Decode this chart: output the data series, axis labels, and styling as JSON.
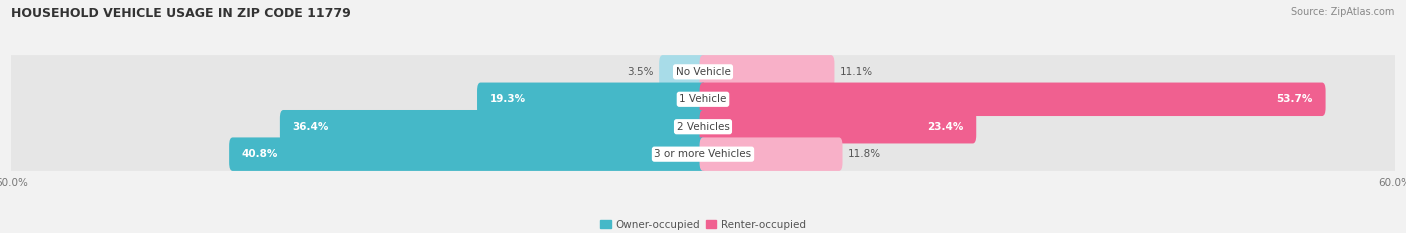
{
  "title": "HOUSEHOLD VEHICLE USAGE IN ZIP CODE 11779",
  "source": "Source: ZipAtlas.com",
  "categories": [
    "No Vehicle",
    "1 Vehicle",
    "2 Vehicles",
    "3 or more Vehicles"
  ],
  "owner_values": [
    3.5,
    19.3,
    36.4,
    40.8
  ],
  "renter_values": [
    11.1,
    53.7,
    23.4,
    11.8
  ],
  "owner_color": "#45b8c8",
  "renter_color": "#f06090",
  "owner_light_color": "#a8dce8",
  "renter_light_color": "#f8b0c8",
  "owner_label": "Owner-occupied",
  "renter_label": "Renter-occupied",
  "axis_max": 60.0,
  "background_color": "#f2f2f2",
  "bar_bg_color": "#e6e6e6",
  "title_fontsize": 9,
  "source_fontsize": 7,
  "value_fontsize": 7.5,
  "cat_fontsize": 7.5,
  "axis_label_fontsize": 7.5,
  "bar_height": 0.62
}
